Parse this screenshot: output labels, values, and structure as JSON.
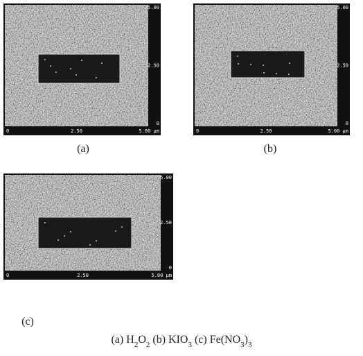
{
  "panels": [
    {
      "label": "(a)",
      "right_axis": [
        "5.00",
        "2.50",
        "0"
      ],
      "bottom_axis": [
        "0",
        "2.50",
        "5.00 μm"
      ]
    },
    {
      "label": "(b)",
      "right_axis": [
        "5.00",
        "2.50",
        "0"
      ],
      "bottom_axis": [
        "0",
        "2.50",
        "5.00 μm"
      ]
    },
    {
      "label": "(c)",
      "right_axis": [
        "5.00",
        "2.50",
        "0"
      ],
      "bottom_axis": [
        "0",
        "2.50",
        "5.00 μm"
      ]
    }
  ],
  "caption": [
    {
      "text": "(a) H"
    },
    {
      "text": "2",
      "sub": true
    },
    {
      "text": "O"
    },
    {
      "text": "2",
      "sub": true
    },
    {
      "text": " (b) KIO"
    },
    {
      "text": "3",
      "sub": true
    },
    {
      "text": " (c) Fe(NO"
    },
    {
      "text": "3",
      "sub": true
    },
    {
      "text": ")"
    },
    {
      "text": "3",
      "sub": true
    }
  ]
}
